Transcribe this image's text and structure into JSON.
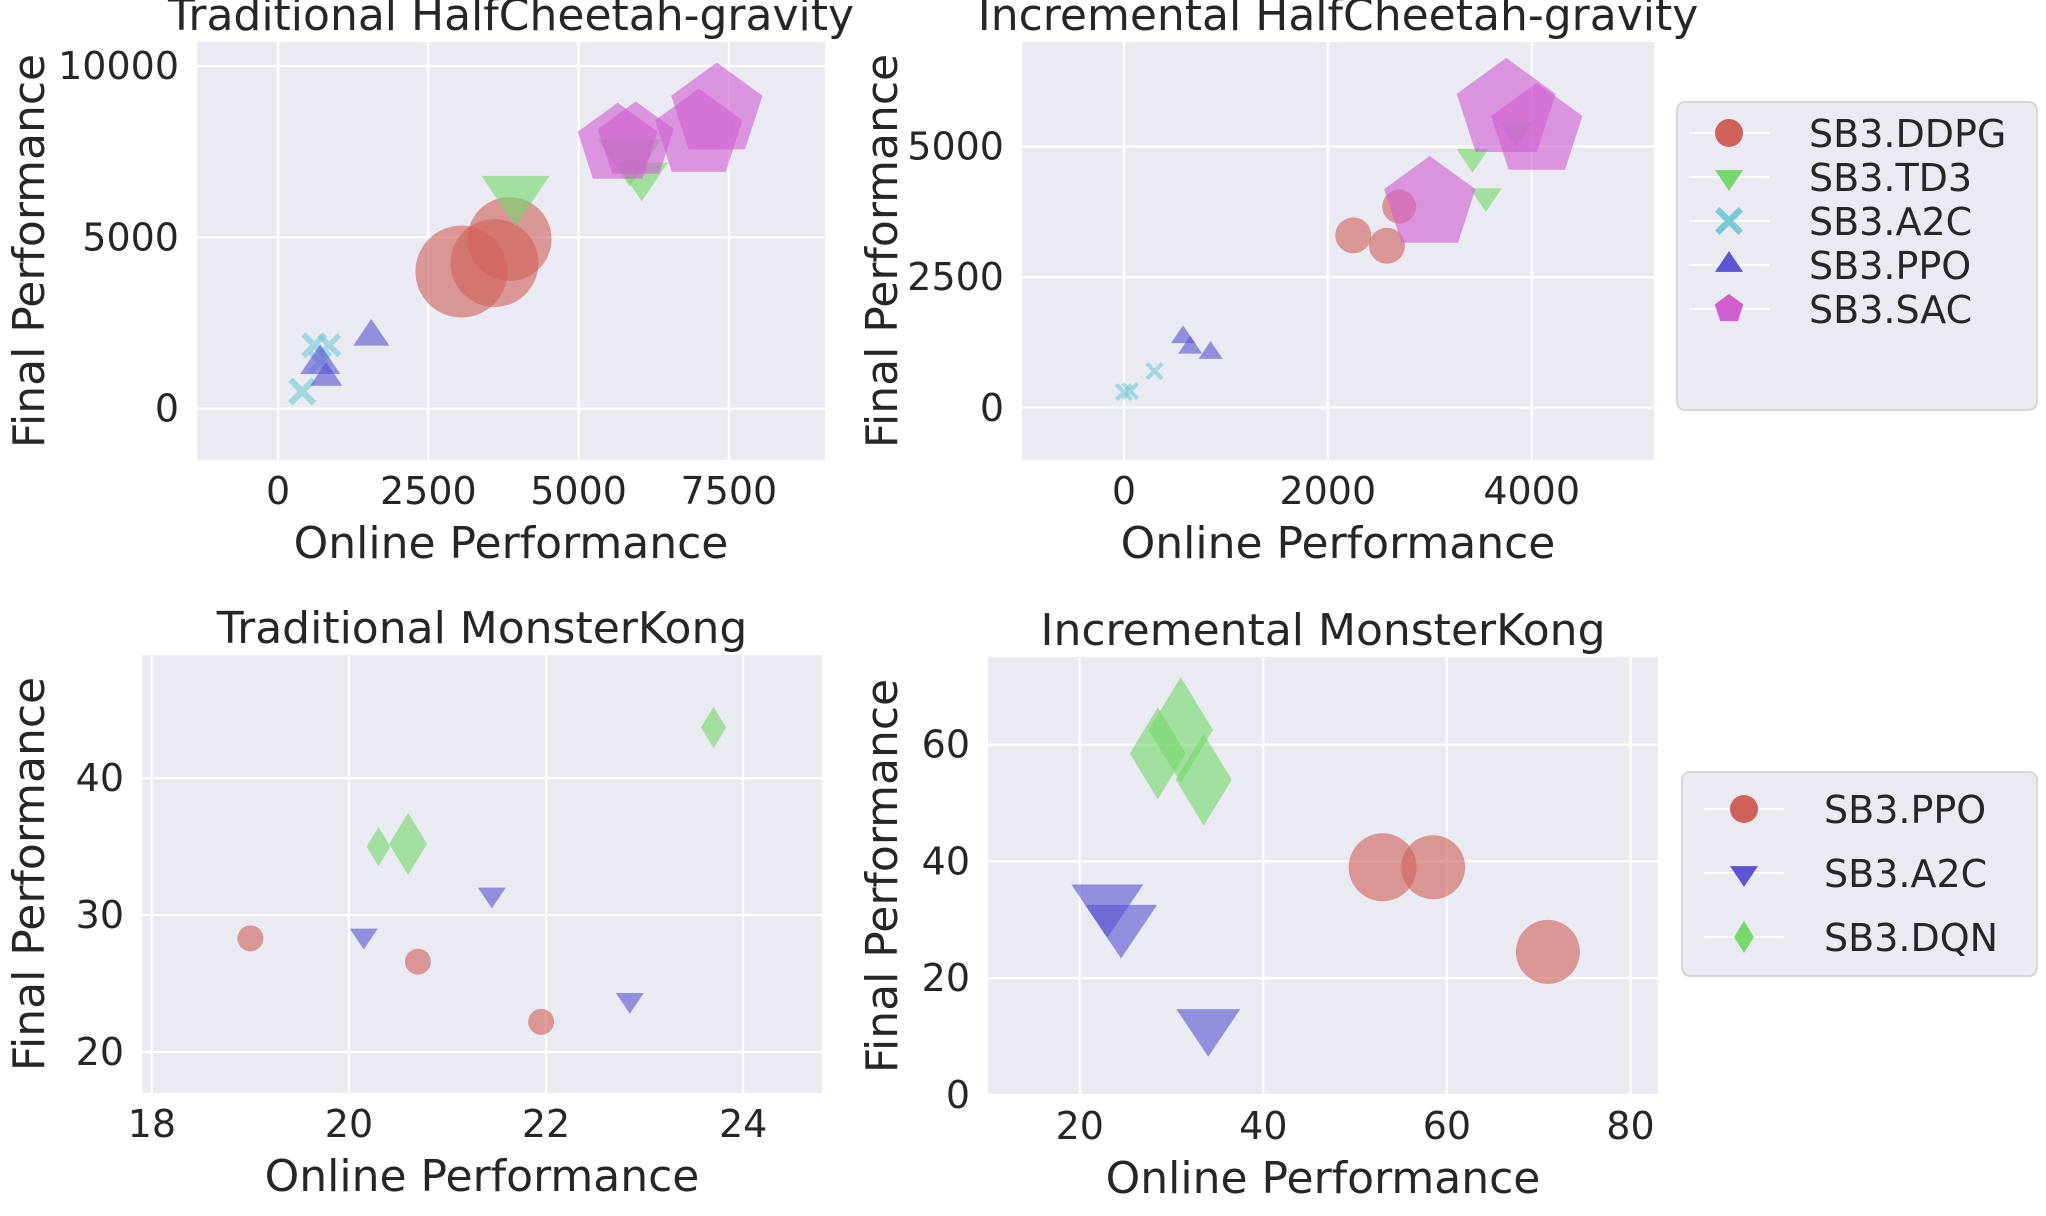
{
  "colors": {
    "DDPG": "#d1625a",
    "TD3": "#75d86a",
    "A2C_cyan": "#76cbd6",
    "PPO_blue": "#5c56d2",
    "SAC": "#d15fd0",
    "PPO_red": "#d1625a",
    "A2C_blue": "#5c56d2",
    "DQN": "#75d86a",
    "plot_bg": "#eaeaf2",
    "grid": "#ffffff"
  },
  "legends": [
    {
      "entries": [
        {
          "label": "SB3.DDPG",
          "marker": "circle",
          "color": "#d1625a"
        },
        {
          "label": "SB3.TD3",
          "marker": "triangle_down",
          "color": "#75d86a"
        },
        {
          "label": "SB3.A2C",
          "marker": "x",
          "color": "#76cbd6"
        },
        {
          "label": "SB3.PPO",
          "marker": "triangle_up",
          "color": "#5c56d2"
        },
        {
          "label": "SB3.SAC",
          "marker": "pentagon",
          "color": "#d15fd0"
        }
      ]
    },
    {
      "entries": [
        {
          "label": "SB3.PPO",
          "marker": "circle",
          "color": "#d1625a"
        },
        {
          "label": "SB3.A2C",
          "marker": "triangle_down",
          "color": "#5c56d2"
        },
        {
          "label": "SB3.DQN",
          "marker": "diamond",
          "color": "#75d86a"
        }
      ]
    }
  ],
  "chart_data": [
    {
      "type": "scatter",
      "title": "Traditional HalfCheetah-gravity",
      "xlabel": "Online Performance",
      "ylabel": "Final Performance",
      "xlim": [
        -1350,
        9100
      ],
      "ylim": [
        -1500,
        10700
      ],
      "xticks": [
        0,
        2500,
        5000,
        7500
      ],
      "yticks": [
        0,
        5000,
        10000
      ],
      "xtick_labels": [
        "0",
        "2500",
        "5000",
        "7500"
      ],
      "ytick_labels": [
        "0",
        "5000",
        "10000"
      ],
      "grid": true,
      "series": [
        {
          "name": "SB3.DDPG",
          "marker": "circle",
          "color": "#d1625a",
          "points": [
            {
              "x": 3050,
              "y": 4000,
              "size": 46
            },
            {
              "x": 3600,
              "y": 4250,
              "size": 44
            },
            {
              "x": 3850,
              "y": 4950,
              "size": 42
            }
          ]
        },
        {
          "name": "SB3.TD3",
          "marker": "triangle_down",
          "color": "#75d86a",
          "points": [
            {
              "x": 3950,
              "y": 6300,
              "size": 34
            },
            {
              "x": 5850,
              "y": 7400,
              "size": 32
            },
            {
              "x": 6050,
              "y": 6800,
              "size": 26
            }
          ]
        },
        {
          "name": "SB3.A2C",
          "marker": "x",
          "color": "#76cbd6",
          "points": [
            {
              "x": 400,
              "y": 500,
              "size": 14
            },
            {
              "x": 600,
              "y": 1850,
              "size": 13
            },
            {
              "x": 850,
              "y": 1850,
              "size": 12
            },
            {
              "x": 700,
              "y": 1350,
              "size": 12
            }
          ]
        },
        {
          "name": "SB3.PPO",
          "marker": "triangle_up",
          "color": "#5c56d2",
          "points": [
            {
              "x": 700,
              "y": 1300,
              "size": 20
            },
            {
              "x": 800,
              "y": 900,
              "size": 16
            },
            {
              "x": 1550,
              "y": 2100,
              "size": 18
            }
          ]
        },
        {
          "name": "SB3.SAC",
          "marker": "pentagon",
          "color": "#d15fd0",
          "points": [
            {
              "x": 5650,
              "y": 7700,
              "size": 42
            },
            {
              "x": 5950,
              "y": 7800,
              "size": 40
            },
            {
              "x": 7000,
              "y": 8000,
              "size": 46
            },
            {
              "x": 7300,
              "y": 8700,
              "size": 48
            }
          ]
        }
      ]
    },
    {
      "type": "scatter",
      "title": "Incremental HalfCheetah-gravity",
      "xlabel": "Online Performance",
      "ylabel": "Final Performance",
      "xlim": [
        -1000,
        5200
      ],
      "ylim": [
        -1000,
        7000
      ],
      "xticks": [
        0,
        2000,
        4000
      ],
      "yticks": [
        0,
        2500,
        5000
      ],
      "xtick_labels": [
        "0",
        "2000",
        "4000"
      ],
      "ytick_labels": [
        "0",
        "2500",
        "5000"
      ],
      "grid": true,
      "series": [
        {
          "name": "SB3.DDPG",
          "marker": "circle",
          "color": "#d1625a",
          "points": [
            {
              "x": 2250,
              "y": 3300,
              "size": 18
            },
            {
              "x": 2580,
              "y": 3100,
              "size": 18
            },
            {
              "x": 2700,
              "y": 3850,
              "size": 17
            }
          ]
        },
        {
          "name": "SB3.TD3",
          "marker": "triangle_down",
          "color": "#75d86a",
          "points": [
            {
              "x": 3420,
              "y": 4800,
              "size": 16
            },
            {
              "x": 3550,
              "y": 4050,
              "size": 16
            },
            {
              "x": 3850,
              "y": 5300,
              "size": 16
            }
          ]
        },
        {
          "name": "SB3.A2C",
          "marker": "x",
          "color": "#76cbd6",
          "points": [
            {
              "x": 0,
              "y": 300,
              "size": 9
            },
            {
              "x": 60,
              "y": 320,
              "size": 9
            },
            {
              "x": 300,
              "y": 700,
              "size": 9
            }
          ]
        },
        {
          "name": "SB3.PPO",
          "marker": "triangle_up",
          "color": "#5c56d2",
          "points": [
            {
              "x": 580,
              "y": 1350,
              "size": 12
            },
            {
              "x": 650,
              "y": 1150,
              "size": 12
            },
            {
              "x": 850,
              "y": 1050,
              "size": 12
            }
          ]
        },
        {
          "name": "SB3.SAC",
          "marker": "pentagon",
          "color": "#d15fd0",
          "points": [
            {
              "x": 3000,
              "y": 3900,
              "size": 48
            },
            {
              "x": 3750,
              "y": 5700,
              "size": 52
            },
            {
              "x": 4050,
              "y": 5300,
              "size": 48
            }
          ]
        }
      ]
    },
    {
      "type": "scatter",
      "title": "Traditional MonsterKong",
      "xlabel": "Online Performance",
      "ylabel": "Final Performance",
      "xlim": [
        17.9,
        24.8
      ],
      "ylim": [
        17,
        49
      ],
      "xticks": [
        18,
        20,
        22,
        24
      ],
      "yticks": [
        20,
        30,
        40
      ],
      "xtick_labels": [
        "18",
        "20",
        "22",
        "24"
      ],
      "ytick_labels": [
        "20",
        "30",
        "40"
      ],
      "grid": true,
      "series": [
        {
          "name": "SB3.PPO",
          "marker": "circle",
          "color": "#d1625a",
          "points": [
            {
              "x": 19.0,
              "y": 28.3,
              "size": 13
            },
            {
              "x": 20.7,
              "y": 26.6,
              "size": 13
            },
            {
              "x": 21.95,
              "y": 22.2,
              "size": 13
            }
          ]
        },
        {
          "name": "SB3.A2C",
          "marker": "triangle_down",
          "color": "#5c56d2",
          "points": [
            {
              "x": 20.15,
              "y": 28.5,
              "size": 14
            },
            {
              "x": 21.45,
              "y": 31.5,
              "size": 14
            },
            {
              "x": 22.85,
              "y": 23.8,
              "size": 14
            }
          ]
        },
        {
          "name": "SB3.DQN",
          "marker": "diamond",
          "color": "#75d86a",
          "points": [
            {
              "x": 20.3,
              "y": 35.0,
              "size": 17
            },
            {
              "x": 20.6,
              "y": 35.2,
              "size": 27
            },
            {
              "x": 23.7,
              "y": 43.7,
              "size": 18
            }
          ]
        }
      ]
    },
    {
      "type": "scatter",
      "title": "Incremental MonsterKong",
      "xlabel": "Online Performance",
      "ylabel": "Final Performance",
      "xlim": [
        10,
        83
      ],
      "ylim": [
        0,
        75
      ],
      "xticks": [
        20,
        40,
        60,
        80
      ],
      "yticks": [
        0,
        20,
        40,
        60
      ],
      "xtick_labels": [
        "20",
        "40",
        "60",
        "80"
      ],
      "ytick_labels": [
        "0",
        "20",
        "40",
        "60"
      ],
      "grid": true,
      "series": [
        {
          "name": "SB3.PPO",
          "marker": "circle",
          "color": "#d1625a",
          "points": [
            {
              "x": 53,
              "y": 39,
              "size": 34
            },
            {
              "x": 58.5,
              "y": 39,
              "size": 32
            },
            {
              "x": 71,
              "y": 24.5,
              "size": 32
            }
          ]
        },
        {
          "name": "SB3.A2C",
          "marker": "triangle_down",
          "color": "#5c56d2",
          "points": [
            {
              "x": 23,
              "y": 33,
              "size": 36
            },
            {
              "x": 24.5,
              "y": 29.5,
              "size": 36
            },
            {
              "x": 34,
              "y": 12,
              "size": 32
            }
          ]
        },
        {
          "name": "SB3.DQN",
          "marker": "diamond",
          "color": "#75d86a",
          "points": [
            {
              "x": 28.5,
              "y": 58.5,
              "size": 40
            },
            {
              "x": 31,
              "y": 62.5,
              "size": 46
            },
            {
              "x": 33.5,
              "y": 54,
              "size": 40
            }
          ]
        }
      ]
    }
  ]
}
